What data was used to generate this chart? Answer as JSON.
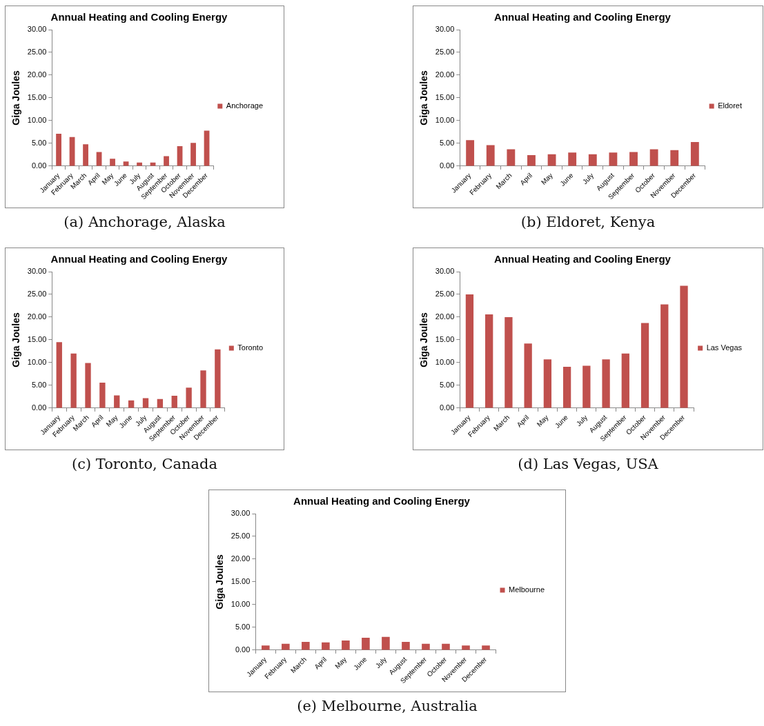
{
  "chart_data": [
    {
      "type": "bar",
      "title": "Annual Heating and Cooling Energy",
      "ylabel": "Giga Joules",
      "categories": [
        "January",
        "February",
        "March",
        "April",
        "May",
        "June",
        "July",
        "August",
        "September",
        "October",
        "November",
        "December"
      ],
      "series": [
        {
          "name": "Anchorage",
          "color": "#c0504d",
          "values": [
            7.1,
            6.4,
            4.8,
            3.1,
            1.6,
            1.0,
            0.8,
            0.8,
            2.2,
            4.4,
            5.1,
            7.8
          ]
        }
      ],
      "ylim": [
        0,
        30
      ],
      "yticks": [
        {
          "value": 0,
          "label": "0.00"
        },
        {
          "value": 5,
          "label": "5.00"
        },
        {
          "value": 10,
          "label": "10.00"
        },
        {
          "value": 15,
          "label": "15.00"
        },
        {
          "value": 20,
          "label": "20.00"
        },
        {
          "value": 25,
          "label": "25.00"
        },
        {
          "value": 30,
          "label": "30.00"
        }
      ],
      "legend": "right",
      "annotations": [
        "(a) Anchorage, Alaska"
      ]
    },
    {
      "type": "bar",
      "title": "Annual Heating and Cooling Energy",
      "ylabel": "Giga Joules",
      "categories": [
        "January",
        "February",
        "March",
        "April",
        "May",
        "June",
        "July",
        "August",
        "September",
        "October",
        "November",
        "December"
      ],
      "series": [
        {
          "name": "Eldoret",
          "color": "#c0504d",
          "values": [
            5.7,
            4.6,
            3.7,
            2.4,
            2.6,
            3.0,
            2.6,
            3.0,
            3.1,
            3.7,
            3.5,
            5.3
          ]
        }
      ],
      "ylim": [
        0,
        30
      ],
      "yticks": [
        {
          "value": 0,
          "label": "0.00"
        },
        {
          "value": 5,
          "label": "5.00"
        },
        {
          "value": 10,
          "label": "10.00"
        },
        {
          "value": 15,
          "label": "15.00"
        },
        {
          "value": 20,
          "label": "20.00"
        },
        {
          "value": 25,
          "label": "25.00"
        },
        {
          "value": 30,
          "label": "30.00"
        }
      ],
      "legend": "right",
      "annotations": [
        "(b) Eldoret, Kenya"
      ]
    },
    {
      "type": "bar",
      "title": "Annual Heating and Cooling Energy",
      "ylabel": "Giga Joules",
      "categories": [
        "January",
        "February",
        "March",
        "April",
        "May",
        "June",
        "July",
        "August",
        "September",
        "October",
        "November",
        "December"
      ],
      "series": [
        {
          "name": "Toronto",
          "color": "#c0504d",
          "values": [
            14.5,
            12.0,
            9.9,
            5.6,
            2.8,
            1.7,
            2.2,
            2.0,
            2.7,
            4.5,
            8.3,
            12.9
          ]
        }
      ],
      "ylim": [
        0,
        30
      ],
      "yticks": [
        {
          "value": 0,
          "label": "0.00"
        },
        {
          "value": 5,
          "label": "5.00"
        },
        {
          "value": 10,
          "label": "10.00"
        },
        {
          "value": 15,
          "label": "15.00"
        },
        {
          "value": 20,
          "label": "20.00"
        },
        {
          "value": 25,
          "label": "25.00"
        },
        {
          "value": 30,
          "label": "30.00"
        }
      ],
      "legend": "right",
      "annotations": [
        "(c) Toronto, Canada"
      ]
    },
    {
      "type": "bar",
      "title": "Annual Heating and Cooling Energy",
      "ylabel": "Giga Joules",
      "categories": [
        "January",
        "February",
        "March",
        "April",
        "May",
        "June",
        "July",
        "August",
        "September",
        "October",
        "November",
        "December"
      ],
      "series": [
        {
          "name": "Las Vegas",
          "color": "#c0504d",
          "values": [
            25.0,
            20.6,
            20.0,
            14.2,
            10.7,
            9.1,
            9.3,
            10.7,
            12.0,
            18.7,
            22.8,
            26.9
          ]
        }
      ],
      "ylim": [
        0,
        30
      ],
      "yticks": [
        {
          "value": 0,
          "label": "0.00"
        },
        {
          "value": 5,
          "label": "5.00"
        },
        {
          "value": 10,
          "label": "10.00"
        },
        {
          "value": 15,
          "label": "15.00"
        },
        {
          "value": 20,
          "label": "20.00"
        },
        {
          "value": 25,
          "label": "25.00"
        },
        {
          "value": 30,
          "label": "30.00"
        }
      ],
      "legend": "right",
      "annotations": [
        "(d) Las Vegas, USA"
      ]
    },
    {
      "type": "bar",
      "title": "Annual Heating and Cooling Energy",
      "ylabel": "Giga Joules",
      "categories": [
        "January",
        "February",
        "March",
        "April",
        "May",
        "June",
        "July",
        "August",
        "September",
        "October",
        "November",
        "December"
      ],
      "series": [
        {
          "name": "Melbourne",
          "color": "#c0504d",
          "values": [
            1.0,
            1.4,
            1.8,
            1.7,
            2.1,
            2.7,
            2.9,
            1.8,
            1.4,
            1.4,
            1.0,
            1.0
          ]
        }
      ],
      "ylim": [
        0,
        30
      ],
      "yticks": [
        {
          "value": 0,
          "label": "0.00"
        },
        {
          "value": 5,
          "label": "5.00"
        },
        {
          "value": 10,
          "label": "10.00"
        },
        {
          "value": 15,
          "label": "15.00"
        },
        {
          "value": 20,
          "label": "20.00"
        },
        {
          "value": 25,
          "label": "25.00"
        },
        {
          "value": 30,
          "label": "30.00"
        }
      ],
      "legend": "right",
      "annotations": [
        "(e) Melbourne, Australia"
      ]
    }
  ]
}
